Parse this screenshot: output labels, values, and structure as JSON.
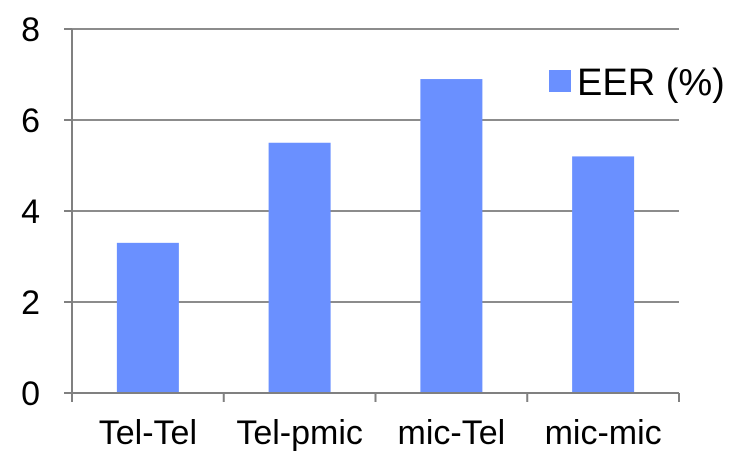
{
  "chart_data": {
    "type": "bar",
    "categories": [
      "Tel-Tel",
      "Tel-pmic",
      "mic-Tel",
      "mic-mic"
    ],
    "series": [
      {
        "name": "EER (%)",
        "values": [
          3.3,
          5.5,
          6.9,
          5.2
        ]
      }
    ],
    "ylim": [
      0,
      8
    ],
    "yticks": [
      "0",
      "2",
      "4",
      "6",
      "8"
    ],
    "title": "",
    "xlabel": "",
    "ylabel": "",
    "grid": true,
    "legend_position": "right",
    "colors": {
      "bar": "#6a90ff",
      "grid": "#8c8c8c",
      "axis": "#808080"
    }
  }
}
